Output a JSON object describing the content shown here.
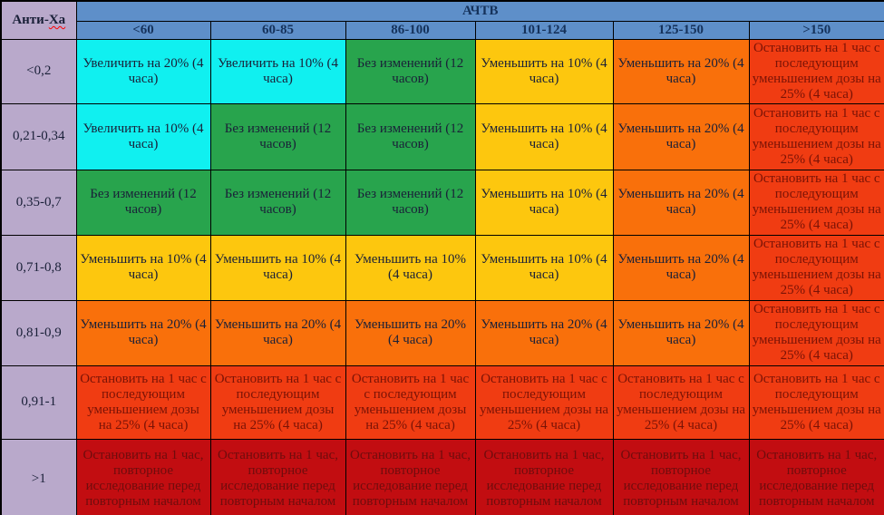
{
  "table": {
    "corner_label_prefix": "Анти-",
    "corner_label_suffix": "Ха",
    "group_header": "АЧТВ",
    "column_headers": [
      "<60",
      "60-85",
      "86-100",
      "101-124",
      "125-150",
      ">150"
    ],
    "rows": [
      {
        "label": "<0,2",
        "cells": [
          {
            "text": "Увеличить на 20% (4 часа)",
            "color": "cyan"
          },
          {
            "text": "Увеличить на 10% (4 часа)",
            "color": "cyan"
          },
          {
            "text": "Без изменений (12 часов)",
            "color": "green"
          },
          {
            "text": "Уменьшить на 10% (4 часа)",
            "color": "yellow"
          },
          {
            "text": "Уменьшить на 20% (4 часа)",
            "color": "orange"
          },
          {
            "text": "Остановить на 1 час с последующим уменьшением дозы на 25% (4 часа)",
            "color": "red_orange"
          }
        ]
      },
      {
        "label": "0,21-0,34",
        "cells": [
          {
            "text": "Увеличить на 10% (4 часа)",
            "color": "cyan"
          },
          {
            "text": "Без изменений (12 часов)",
            "color": "green"
          },
          {
            "text": "Без изменений (12 часов)",
            "color": "green"
          },
          {
            "text": "Уменьшить на 10% (4 часа)",
            "color": "yellow"
          },
          {
            "text": "Уменьшить на 20% (4 часа)",
            "color": "orange"
          },
          {
            "text": "Остановить на 1 час с последующим уменьшением дозы на 25% (4 часа)",
            "color": "red_orange"
          }
        ]
      },
      {
        "label": "0,35-0,7",
        "cells": [
          {
            "text": "Без изменений (12 часов)",
            "color": "green"
          },
          {
            "text": "Без изменений (12 часов)",
            "color": "green"
          },
          {
            "text": "Без изменений (12 часов)",
            "color": "green"
          },
          {
            "text": "Уменьшить на 10% (4 часа)",
            "color": "yellow"
          },
          {
            "text": "Уменьшить на 20% (4 часа)",
            "color": "orange"
          },
          {
            "text": "Остановить на 1 час с последующим уменьшением дозы на 25% (4 часа)",
            "color": "red_orange"
          }
        ]
      },
      {
        "label": "0,71-0,8",
        "cells": [
          {
            "text": "Уменьшить на 10% (4 часа)",
            "color": "yellow"
          },
          {
            "text": "Уменьшить на 10% (4 часа)",
            "color": "yellow"
          },
          {
            "text": "Уменьшить на 10% (4 часа)",
            "color": "yellow"
          },
          {
            "text": "Уменьшить на 10% (4 часа)",
            "color": "yellow"
          },
          {
            "text": "Уменьшить на 20% (4 часа)",
            "color": "orange"
          },
          {
            "text": "Остановить на 1 час с последующим уменьшением дозы на 25% (4 часа)",
            "color": "red_orange"
          }
        ]
      },
      {
        "label": "0,81-0,9",
        "cells": [
          {
            "text": "Уменьшить на 20% (4 часа)",
            "color": "orange"
          },
          {
            "text": "Уменьшить на 20% (4 часа)",
            "color": "orange"
          },
          {
            "text": "Уменьшить на 20% (4 часа)",
            "color": "orange"
          },
          {
            "text": "Уменьшить на 20% (4 часа)",
            "color": "orange"
          },
          {
            "text": "Уменьшить на 20% (4 часа)",
            "color": "orange"
          },
          {
            "text": "Остановить на 1 час с последующим уменьшением дозы на 25% (4 часа)",
            "color": "red_orange"
          }
        ]
      },
      {
        "label": "0,91-1",
        "cells": [
          {
            "text": "Остановить на 1 час с последующим уменьшением дозы на 25% (4 часа)",
            "color": "red_orange"
          },
          {
            "text": "Остановить на 1 час с последующим уменьшением дозы на 25% (4 часа)",
            "color": "red_orange"
          },
          {
            "text": "Остановить на 1 час с последующим уменьшением дозы на 25% (4 часа)",
            "color": "red_orange"
          },
          {
            "text": "Остановить на 1 час с последующим уменьшением дозы на 25% (4 часа)",
            "color": "red_orange"
          },
          {
            "text": "Остановить на 1 час с последующим уменьшением дозы на 25% (4 часа)",
            "color": "red_orange"
          },
          {
            "text": "Остановить на 1 час с последующим уменьшением дозы на 25% (4 часа)",
            "color": "red_orange"
          }
        ]
      },
      {
        "label": ">1",
        "cells": [
          {
            "text": "Остановить на 1 час, повторное исследование перед повторным началом",
            "color": "dark_red"
          },
          {
            "text": "Остановить на 1 час, повторное исследование перед повторным началом",
            "color": "dark_red"
          },
          {
            "text": "Остановить на 1 час, повторное исследование перед повторным началом",
            "color": "dark_red"
          },
          {
            "text": "Остановить на 1 час, повторное исследование перед повторным началом",
            "color": "dark_red"
          },
          {
            "text": "Остановить на 1 час, повторное исследование перед повторным началом",
            "color": "dark_red"
          },
          {
            "text": "Остановить на 1 час, повторное исследование перед повторным началом",
            "color": "dark_red"
          }
        ]
      }
    ],
    "colors": {
      "blue": "#5E8FC9",
      "lavender": "#B9A9CB",
      "cyan": "#10F0F0",
      "green": "#28A44D",
      "yellow": "#FDC70E",
      "orange": "#F9700B",
      "red_orange": "#F03C12",
      "dark_red": "#C20D11",
      "text_header": "#15325B",
      "text_dark": "#1A2038",
      "text_red_cells": "#7A1306",
      "text_dark_red_cells": "#6E0D0D",
      "squiggle": "#FF0000"
    }
  }
}
